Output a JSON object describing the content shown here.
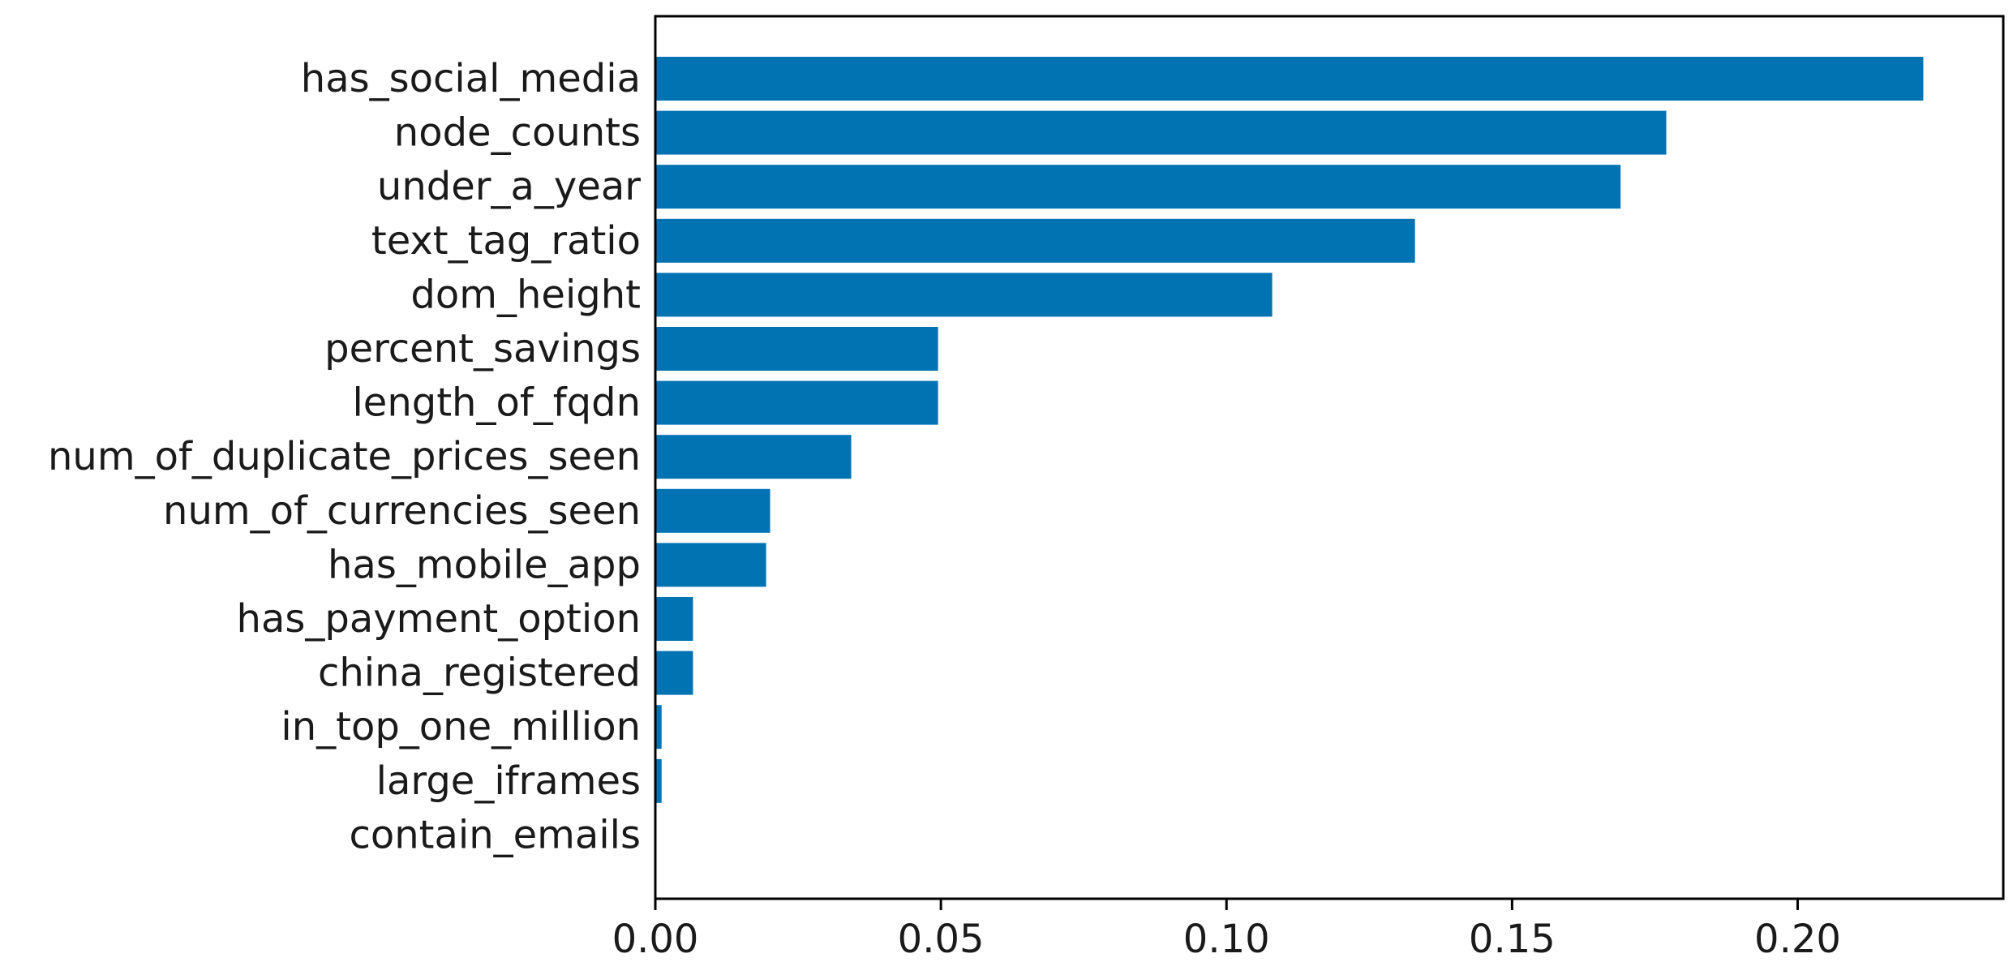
{
  "chart_data": {
    "type": "bar",
    "orientation": "horizontal",
    "categories": [
      "has_social_media",
      "node_counts",
      "under_a_year",
      "text_tag_ratio",
      "dom_height",
      "percent_savings",
      "length_of_fqdn",
      "num_of_duplicate_prices_seen",
      "num_of_currencies_seen",
      "has_mobile_app",
      "has_payment_option",
      "china_registered",
      "in_top_one_million",
      "large_iframes",
      "contain_emails"
    ],
    "values": [
      0.222,
      0.177,
      0.169,
      0.133,
      0.108,
      0.0495,
      0.0495,
      0.0343,
      0.0201,
      0.0194,
      0.0066,
      0.0066,
      0.0011,
      0.0011,
      0.0002
    ],
    "xlim": [
      0.0,
      0.236
    ],
    "xticks": [
      0.0,
      0.05,
      0.1,
      0.15,
      0.2
    ],
    "xtick_labels": [
      "0.00",
      "0.05",
      "0.10",
      "0.15",
      "0.20"
    ],
    "title": "",
    "xlabel": "",
    "ylabel": "",
    "grid": false,
    "bar_color": "#0173b2"
  }
}
